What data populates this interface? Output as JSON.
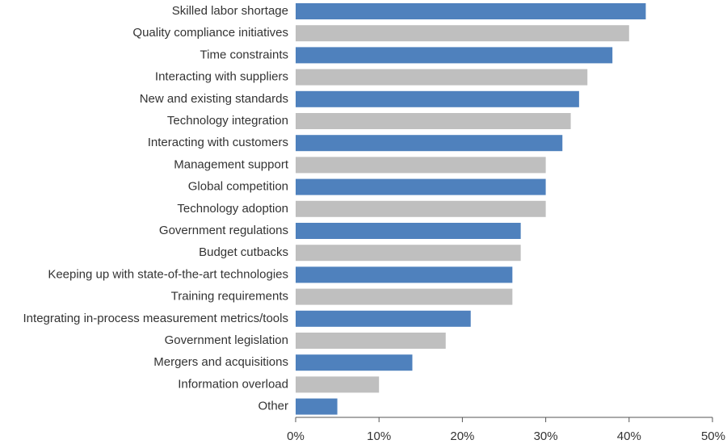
{
  "chart_data": {
    "type": "bar",
    "orientation": "horizontal",
    "categories": [
      "Skilled labor shortage",
      "Quality compliance initiatives",
      "Time constraints",
      "Interacting with suppliers",
      "New and existing standards",
      "Technology integration",
      "Interacting with customers",
      "Management support",
      "Global competition",
      "Technology adoption",
      "Government regulations",
      "Budget cutbacks",
      "Keeping up with state-of-the-art technologies",
      "Training requirements",
      "Integrating in-process measurement metrics/tools",
      "Government legislation",
      "Mergers and acquisitions",
      "Information overload",
      "Other"
    ],
    "values": [
      42,
      40,
      38,
      35,
      34,
      33,
      32,
      30,
      30,
      30,
      27,
      27,
      26,
      26,
      21,
      18,
      14,
      10,
      5
    ],
    "unit": "%",
    "xlim": [
      0,
      50
    ],
    "x_ticks": [
      0,
      10,
      20,
      30,
      40,
      50
    ],
    "x_tick_labels": [
      "0%",
      "10%",
      "20%",
      "30%",
      "40%",
      "50%"
    ],
    "grid": false,
    "colors": [
      "#4f81bd",
      "#bfbfbf"
    ]
  }
}
